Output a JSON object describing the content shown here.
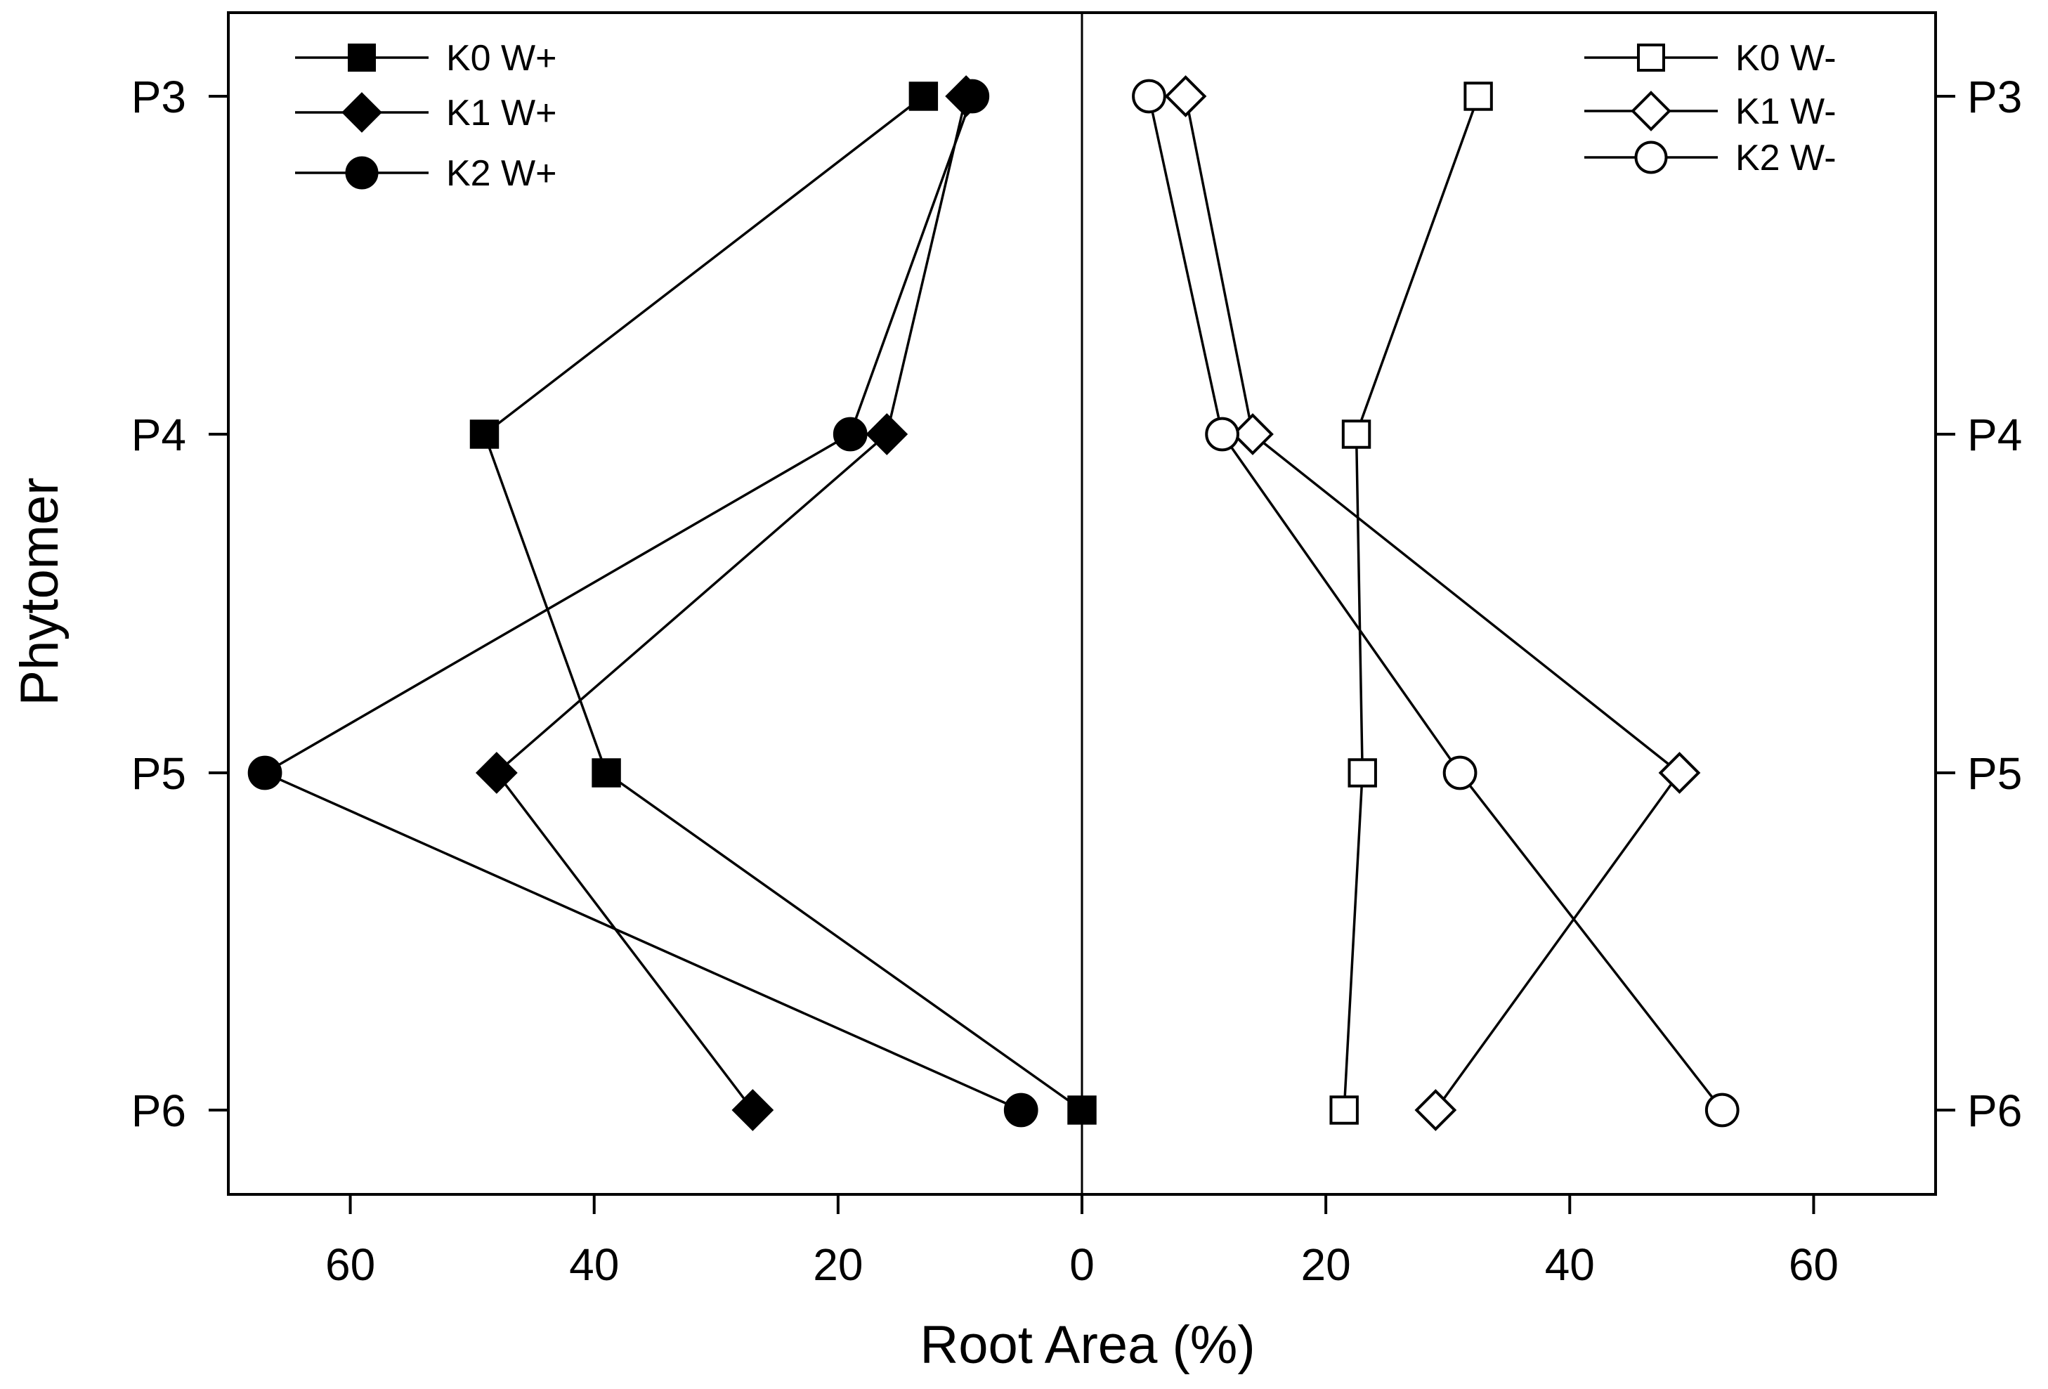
{
  "chart_data": {
    "type": "line",
    "xlabel": "Root Area (%)",
    "ylabel": "Phytomer",
    "categories": [
      "P3",
      "P4",
      "P5",
      "P6"
    ],
    "xlim": [
      -70,
      70
    ],
    "x_ticks": [
      {
        "value": -60,
        "label": "60"
      },
      {
        "value": -40,
        "label": "40"
      },
      {
        "value": -20,
        "label": "20"
      },
      {
        "value": 0,
        "label": "0"
      },
      {
        "value": 20,
        "label": "20"
      },
      {
        "value": 40,
        "label": "40"
      },
      {
        "value": 60,
        "label": "60"
      }
    ],
    "legend_left": "top-left",
    "legend_right": "top-right",
    "series": [
      {
        "name": "K0 W+",
        "side": "left",
        "marker": "square",
        "filled": true,
        "values": [
          -13,
          -49,
          -39,
          0
        ]
      },
      {
        "name": "K1 W+",
        "side": "left",
        "marker": "diamond",
        "filled": true,
        "values": [
          -9.5,
          -16,
          -48,
          -27
        ]
      },
      {
        "name": "K2 W+",
        "side": "left",
        "marker": "circle",
        "filled": true,
        "values": [
          -9,
          -19,
          -67,
          -5
        ]
      },
      {
        "name": "K0 W-",
        "side": "right",
        "marker": "square",
        "filled": false,
        "values": [
          32.5,
          22.5,
          23,
          21.5
        ]
      },
      {
        "name": "K1 W-",
        "side": "right",
        "marker": "diamond",
        "filled": false,
        "values": [
          8.5,
          14,
          49,
          29
        ]
      },
      {
        "name": "K2 W-",
        "side": "right",
        "marker": "circle",
        "filled": false,
        "values": [
          5.5,
          11.5,
          31,
          52.5
        ]
      }
    ]
  }
}
